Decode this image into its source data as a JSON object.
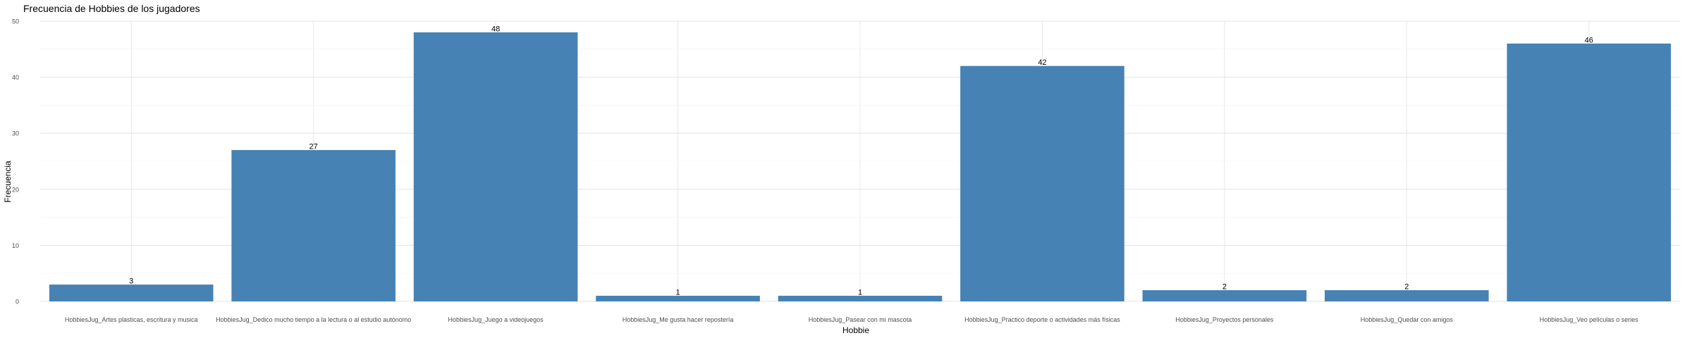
{
  "chart_data": {
    "type": "bar",
    "title": "Frecuencia de Hobbies de los jugadores",
    "xlabel": "Hobbie",
    "ylabel": "Frecuencia",
    "ylim": [
      0,
      50
    ],
    "yticks": [
      0,
      10,
      20,
      30,
      40,
      50
    ],
    "grid": true,
    "bar_color": "#4682B4",
    "categories": [
      "HobbiesJug_Artes plasticas, escritura y musica",
      "HobbiesJug_Dedico mucho tiempo a la lectura o al estudio autónomo",
      "HobbiesJug_Juego a videojuegos",
      "HobbiesJug_Me gusta hacer repostería",
      "HobbiesJug_Pasear con mi mascota",
      "HobbiesJug_Practico deporte o actividades más físicas",
      "HobbiesJug_Proyectos personales",
      "HobbiesJug_Quedar con amigos",
      "HobbiesJug_Veo películas o series"
    ],
    "values": [
      3,
      27,
      48,
      1,
      1,
      42,
      2,
      2,
      46
    ]
  }
}
